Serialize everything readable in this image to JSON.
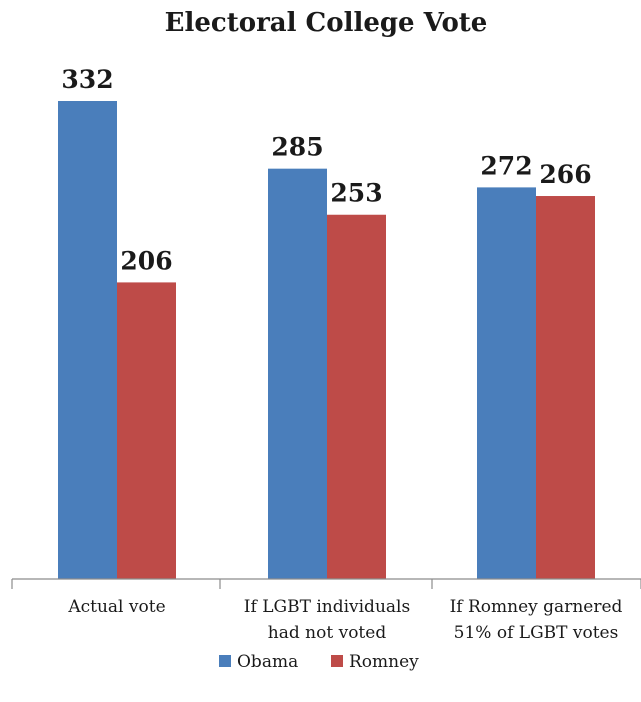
{
  "chart_data": {
    "type": "bar",
    "title": "Electoral College Vote",
    "categories": [
      [
        "Actual vote"
      ],
      [
        "If LGBT individuals",
        "had not voted"
      ],
      [
        "If Romney garnered",
        "51% of LGBT votes"
      ]
    ],
    "series": [
      {
        "name": "Obama",
        "color": "#4a7ebb",
        "values": [
          332,
          285,
          272
        ]
      },
      {
        "name": "Romney",
        "color": "#be4b48",
        "values": [
          206,
          253,
          266
        ]
      }
    ],
    "ylim": [
      0,
      350
    ],
    "legend_position": "bottom",
    "grid": false,
    "xlabel": "",
    "ylabel": ""
  }
}
